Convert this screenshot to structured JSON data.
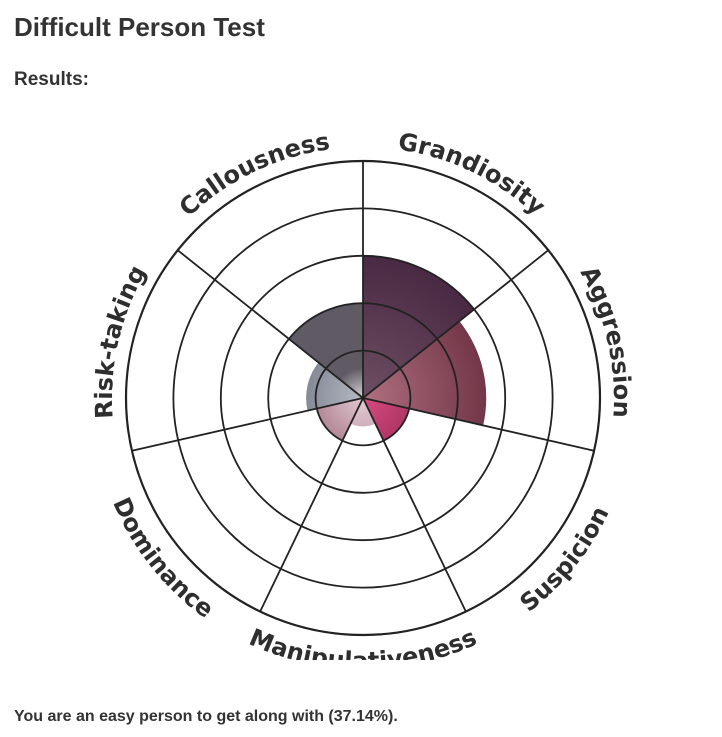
{
  "page": {
    "title": "Difficult Person Test",
    "results_label": "Results:",
    "summary": "You are an easy person to get along with (37.14%)."
  },
  "chart_data": {
    "type": "polar-area",
    "rings": 5,
    "categories": [
      "Grandiosity",
      "Aggression",
      "Suspicion",
      "Manipulativeness",
      "Dominance",
      "Risk-taking",
      "Callousness"
    ],
    "values": [
      3,
      2.6,
      1,
      0.6,
      1,
      1.2,
      2
    ],
    "max": 5,
    "colors": [
      "#3c1e38",
      "#6a2f40",
      "#b13767",
      "#c5aab6",
      "#c2a6b0",
      "#606674",
      "#ffffff"
    ]
  }
}
